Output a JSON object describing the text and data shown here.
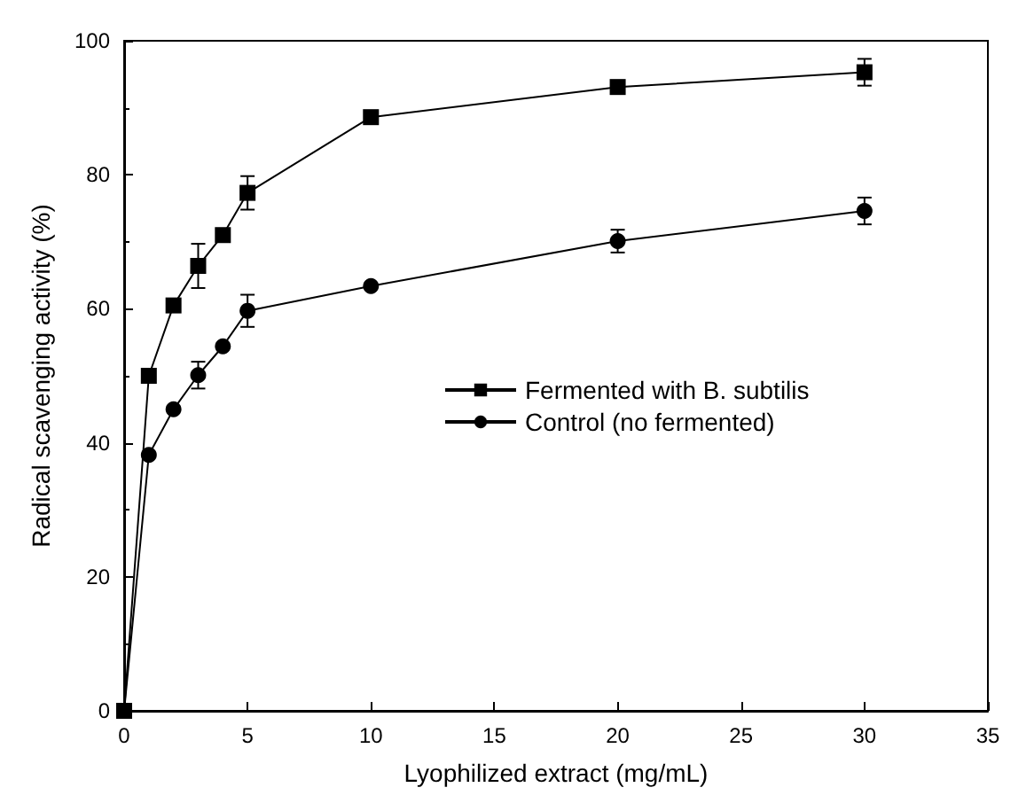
{
  "chart_data": {
    "type": "line",
    "xlabel": "Lyophilized extract (mg/mL)",
    "ylabel": "Radical scavenging activity (%)",
    "xlim": [
      0,
      35
    ],
    "xticks": [
      0,
      5,
      10,
      15,
      20,
      25,
      30,
      35
    ],
    "ylim": [
      0,
      100
    ],
    "yticks": [
      0,
      20,
      40,
      60,
      80,
      100
    ],
    "grid": false,
    "legend": "right",
    "line_style": "solid",
    "series": [
      {
        "name": "Fermented with B. subtilis",
        "color": "#000000",
        "marker": "square",
        "x": [
          0,
          1,
          2,
          3,
          4,
          5,
          10,
          20,
          30
        ],
        "values": [
          0,
          50,
          60.5,
          66.4,
          71,
          77.3,
          88.6,
          93.1,
          95.3
        ],
        "errors": [
          null,
          null,
          null,
          3.3,
          null,
          2.5,
          null,
          null,
          2
        ]
      },
      {
        "name": "Control (no fermented)",
        "color": "#000000",
        "marker": "circle",
        "x": [
          0,
          1,
          2,
          3,
          4,
          5,
          10,
          20,
          30
        ],
        "values": [
          0,
          38.2,
          45,
          50.1,
          54.4,
          59.7,
          63.4,
          70.1,
          74.6
        ],
        "errors": [
          null,
          null,
          null,
          2,
          null,
          2.4,
          null,
          1.7,
          2
        ]
      }
    ]
  }
}
